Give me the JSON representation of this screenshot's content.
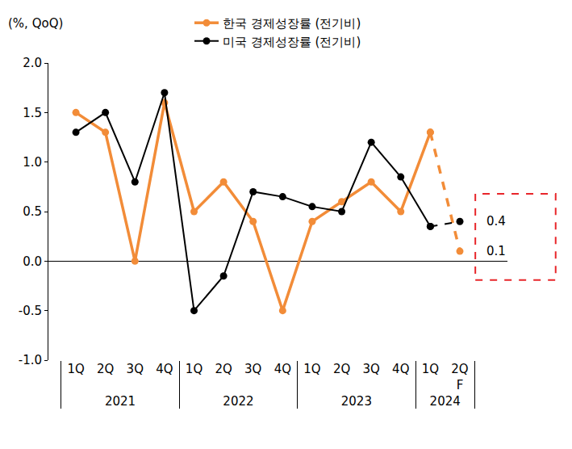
{
  "chart_data": {
    "type": "line",
    "y_label": "(%, QoQ)",
    "categories": [
      "1Q",
      "2Q",
      "3Q",
      "4Q",
      "1Q",
      "2Q",
      "3Q",
      "4Q",
      "1Q",
      "2Q",
      "3Q",
      "4Q",
      "1Q",
      "2Q\nF"
    ],
    "groups": [
      "2021",
      "2021",
      "2021",
      "2021",
      "2022",
      "2022",
      "2022",
      "2022",
      "2023",
      "2023",
      "2023",
      "2023",
      "2024",
      "2024"
    ],
    "series": [
      {
        "name": "한국 경제성장률 (전기비)",
        "color": "#f28c38",
        "marker": "circle",
        "line_style": "solid",
        "values": [
          1.5,
          1.3,
          0.0,
          1.6,
          0.5,
          0.8,
          0.4,
          -0.5,
          0.4,
          0.6,
          0.8,
          0.5,
          1.3,
          0.1
        ]
      },
      {
        "name": "미국 경제성장률 (전기비)",
        "color": "#000000",
        "marker": "circle",
        "line_style": "solid",
        "values": [
          1.3,
          1.5,
          0.8,
          1.7,
          -0.5,
          -0.15,
          0.7,
          0.65,
          0.55,
          0.5,
          1.2,
          0.85,
          0.35,
          0.4
        ]
      }
    ],
    "annotations": [
      {
        "series": 1,
        "index": 13,
        "text": "0.4"
      },
      {
        "series": 0,
        "index": 13,
        "text": "0.1"
      }
    ],
    "ylim": [
      -1,
      2
    ],
    "yticks": [
      {
        "value": -1,
        "label": "-1.0"
      },
      -0.5,
      {
        "value": 0,
        "label": "0.0"
      },
      0.5,
      {
        "value": 1,
        "label": "1.0"
      },
      1.5,
      {
        "value": 2,
        "label": "2.0"
      }
    ],
    "grid": false,
    "legend": "top"
  }
}
